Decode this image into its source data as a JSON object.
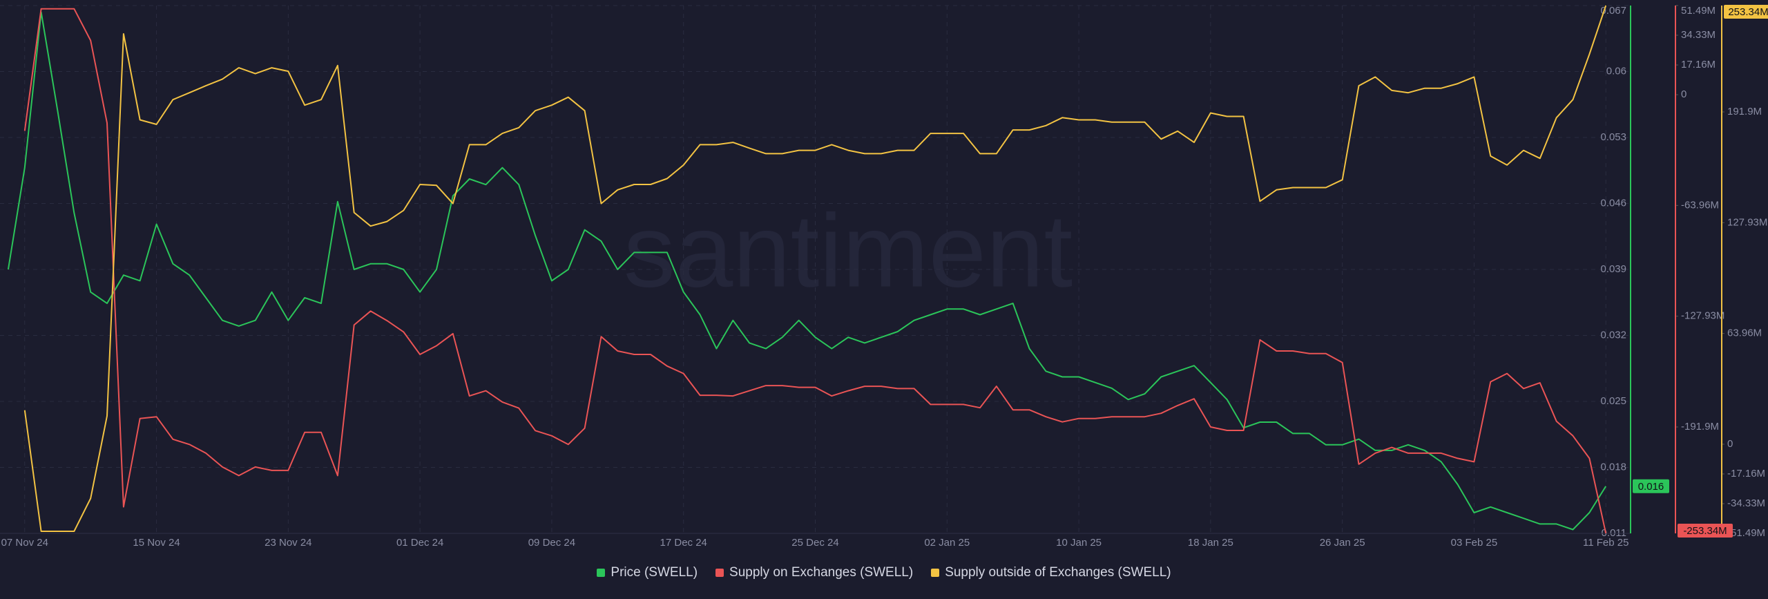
{
  "chart_data": {
    "type": "line",
    "watermark": "santiment",
    "xlim": [
      "2024-11-05T12:00:00Z",
      "2025-02-12T12:00:00Z"
    ],
    "xticks": [
      {
        "value": "2024-11-07",
        "label": "07 Nov 24"
      },
      {
        "value": "2024-11-15",
        "label": "15 Nov 24"
      },
      {
        "value": "2024-11-23",
        "label": "23 Nov 24"
      },
      {
        "value": "2024-12-01",
        "label": "01 Dec 24"
      },
      {
        "value": "2024-12-09",
        "label": "09 Dec 24"
      },
      {
        "value": "2024-12-17",
        "label": "17 Dec 24"
      },
      {
        "value": "2024-12-25",
        "label": "25 Dec 24"
      },
      {
        "value": "2025-01-02",
        "label": "02 Jan 25"
      },
      {
        "value": "2025-01-10",
        "label": "10 Jan 25"
      },
      {
        "value": "2025-01-18",
        "label": "18 Jan 25"
      },
      {
        "value": "2025-01-26",
        "label": "26 Jan 25"
      },
      {
        "value": "2025-02-03",
        "label": "03 Feb 25"
      },
      {
        "value": "2025-02-11",
        "label": "11 Feb 25"
      }
    ],
    "ylim": [
      0.011,
      0.067
    ],
    "yticks": [
      0.011,
      0.018,
      0.025,
      0.032,
      0.039,
      0.046,
      0.053,
      0.06,
      0.067
    ],
    "y2lim": [
      -253340000.0,
      51490000.0
    ],
    "y2ticks": [
      {
        "value": 51490000.0,
        "label": "51.49M"
      },
      {
        "value": 34330000.0,
        "label": "34.33M"
      },
      {
        "value": 17160000.0,
        "label": "17.16M"
      },
      {
        "value": 0,
        "label": "0"
      },
      {
        "value": -63960000.0,
        "label": "-63.96M"
      },
      {
        "value": -127930000.0,
        "label": "-127.93M"
      },
      {
        "value": -191900000.0,
        "label": "-191.9M"
      }
    ],
    "y3lim": [
      -51490000.0,
      253340000.0
    ],
    "y3ticks": [
      {
        "value": 191900000.0,
        "label": "191.9M"
      },
      {
        "value": 127930000.0,
        "label": "127.93M"
      },
      {
        "value": 63960000.0,
        "label": "63.96M"
      },
      {
        "value": 0,
        "label": "0"
      },
      {
        "value": -17160000.0,
        "label": "-17.16M"
      },
      {
        "value": -34330000.0,
        "label": "-34.33M"
      },
      {
        "value": -51490000.0,
        "label": "-51.49M"
      }
    ],
    "grid": true,
    "x": [
      "2024-11-06",
      "2024-11-07",
      "2024-11-08",
      "2024-11-09",
      "2024-11-10",
      "2024-11-11",
      "2024-11-12",
      "2024-11-13",
      "2024-11-14",
      "2024-11-15",
      "2024-11-16",
      "2024-11-17",
      "2024-11-18",
      "2024-11-19",
      "2024-11-20",
      "2024-11-21",
      "2024-11-22",
      "2024-11-23",
      "2024-11-24",
      "2024-11-25",
      "2024-11-26",
      "2024-11-27",
      "2024-11-28",
      "2024-11-29",
      "2024-11-30",
      "2024-12-01",
      "2024-12-02",
      "2024-12-03",
      "2024-12-04",
      "2024-12-05",
      "2024-12-06",
      "2024-12-07",
      "2024-12-08",
      "2024-12-09",
      "2024-12-10",
      "2024-12-11",
      "2024-12-12",
      "2024-12-13",
      "2024-12-14",
      "2024-12-15",
      "2024-12-16",
      "2024-12-17",
      "2024-12-18",
      "2024-12-19",
      "2024-12-20",
      "2024-12-21",
      "2024-12-22",
      "2024-12-23",
      "2024-12-24",
      "2024-12-25",
      "2024-12-26",
      "2024-12-27",
      "2024-12-28",
      "2024-12-29",
      "2024-12-30",
      "2024-12-31",
      "2025-01-01",
      "2025-01-02",
      "2025-01-03",
      "2025-01-04",
      "2025-01-05",
      "2025-01-06",
      "2025-01-07",
      "2025-01-08",
      "2025-01-09",
      "2025-01-10",
      "2025-01-11",
      "2025-01-12",
      "2025-01-13",
      "2025-01-14",
      "2025-01-15",
      "2025-01-16",
      "2025-01-17",
      "2025-01-18",
      "2025-01-19",
      "2025-01-20",
      "2025-01-21",
      "2025-01-22",
      "2025-01-23",
      "2025-01-24",
      "2025-01-25",
      "2025-01-26",
      "2025-01-27",
      "2025-01-28",
      "2025-01-29",
      "2025-01-30",
      "2025-01-31",
      "2025-02-01",
      "2025-02-02",
      "2025-02-03",
      "2025-02-04",
      "2025-02-05",
      "2025-02-06",
      "2025-02-07",
      "2025-02-08",
      "2025-02-09",
      "2025-02-10",
      "2025-02-11"
    ],
    "series": [
      {
        "name": "Price (SWELL)",
        "color": "#2bc55a",
        "axis": "y",
        "last_label": "0.016",
        "values": [
          0.039,
          0.0498,
          0.0663,
          0.0558,
          0.045,
          0.0366,
          0.0354,
          0.0384,
          0.0378,
          0.0438,
          0.0396,
          0.0384,
          0.036,
          0.0336,
          0.033,
          0.0336,
          0.0366,
          0.0336,
          0.036,
          0.0354,
          0.0462,
          0.039,
          0.0396,
          0.0396,
          0.039,
          0.0366,
          0.039,
          0.0468,
          0.0486,
          0.048,
          0.0498,
          0.048,
          0.0426,
          0.0378,
          0.039,
          0.0432,
          0.042,
          0.039,
          0.0408,
          0.0408,
          0.0408,
          0.0366,
          0.0342,
          0.0306,
          0.0336,
          0.0312,
          0.0306,
          0.0318,
          0.0336,
          0.0318,
          0.0306,
          0.0318,
          0.0312,
          0.0318,
          0.0324,
          0.0336,
          0.0342,
          0.0348,
          0.0348,
          0.0342,
          0.0348,
          0.0354,
          0.0306,
          0.0282,
          0.0276,
          0.0276,
          0.027,
          0.0264,
          0.0252,
          0.0258,
          0.0276,
          0.0282,
          0.0288,
          0.027,
          0.0252,
          0.0222,
          0.0228,
          0.0228,
          0.0216,
          0.0216,
          0.0204,
          0.0204,
          0.021,
          0.0198,
          0.0198,
          0.0204,
          0.0198,
          0.0186,
          0.0162,
          0.0132,
          0.0138,
          0.0132,
          0.0126,
          0.012,
          0.012,
          0.0114,
          0.0132,
          0.016
        ]
      },
      {
        "name": "Supply on Exchanges (SWELL)",
        "color": "#ea5455",
        "axis": "y2",
        "last_label": "-253.34M",
        "values": [
          null,
          -20900000.0,
          49600000.0,
          49600000.0,
          49600000.0,
          31300000.0,
          -16300000.0,
          -238000000.0,
          -187000000.0,
          -186000000.0,
          -199000000.0,
          -202000000.0,
          -207000000.0,
          -215000000.0,
          -220000000.0,
          -215000000.0,
          -217000000.0,
          -217000000.0,
          -195000000.0,
          -195000000.0,
          -220000000.0,
          -133000000.0,
          -125000000.0,
          -130500000.0,
          -137000000.0,
          -150000000.0,
          -145000000.0,
          -138000000.0,
          -174000000.0,
          -171000000.0,
          -177500000.0,
          -181000000.0,
          -194000000.0,
          -197000000.0,
          -202000000.0,
          -192600000.0,
          -139700000.0,
          -148000000.0,
          -150000000.0,
          -150000000.0,
          -156700000.0,
          -161000000.0,
          -173600000.0,
          -173600000.0,
          -174000000.0,
          -171000000.0,
          -168000000.0,
          -168000000.0,
          -169000000.0,
          -169000000.0,
          -174000000.0,
          -171000000.0,
          -168400000.0,
          -168400000.0,
          -169700000.0,
          -169700000.0,
          -178900000.0,
          -178900000.0,
          -178900000.0,
          -180800000.0,
          -168400000.0,
          -182000000.0,
          -182000000.0,
          -186000000.0,
          -189000000.0,
          -187000000.0,
          -187000000.0,
          -186000000.0,
          -186000000.0,
          -186000000.0,
          -184000000.0,
          -179500000.0,
          -175600000.0,
          -191900000.0,
          -193900000.0,
          -193900000.0,
          -141600000.0,
          -148000000.0,
          -148000000.0,
          -149500000.0,
          -149500000.0,
          -154700000.0,
          -213400000.0,
          -207000000.0,
          -203700000.0,
          -207000000.0,
          -207000000.0,
          -207000000.0,
          -210000000.0,
          -212000000.0,
          -165800000.0,
          -161000000.0,
          -169700000.0,
          -166400000.0,
          -188600000.0,
          -197000000.0,
          -210000000.0,
          -253340000.0
        ]
      },
      {
        "name": "Supply outside of Exchanges (SWELL)",
        "color": "#f3c343",
        "axis": "y3",
        "last_label": "253.34M",
        "values": [
          null,
          19600000.0,
          -50300000.0,
          -50300000.0,
          -50300000.0,
          -31300000.0,
          16300000.0,
          237000000.0,
          187300000.0,
          184700000.0,
          199000000.0,
          203000000.0,
          207000000.0,
          210800000.0,
          217400000.0,
          214000000.0,
          217400000.0,
          215400000.0,
          195800000.0,
          199000000.0,
          218700000.0,
          133800000.0,
          126000000.0,
          128600000.0,
          135000000.0,
          150000000.0,
          149500000.0,
          139000000.0,
          173000000.0,
          173000000.0,
          179500000.0,
          182800000.0,
          192600000.0,
          195800000.0,
          200400000.0,
          192600000.0,
          139000000.0,
          146900000.0,
          150000000.0,
          150000000.0,
          153400000.0,
          161200000.0,
          173000000.0,
          173000000.0,
          174300000.0,
          171000000.0,
          167800000.0,
          167800000.0,
          169700000.0,
          169700000.0,
          173000000.0,
          169700000.0,
          167800000.0,
          167800000.0,
          169700000.0,
          169700000.0,
          179500000.0,
          179500000.0,
          179500000.0,
          167800000.0,
          167800000.0,
          181500000.0,
          181500000.0,
          184000000.0,
          188600000.0,
          187300000.0,
          187300000.0,
          186000000.0,
          186000000.0,
          186000000.0,
          176200000.0,
          180800000.0,
          174300000.0,
          191300000.0,
          189300000.0,
          189300000.0,
          140300000.0,
          146900000.0,
          148200000.0,
          148200000.0,
          148200000.0,
          152700000.0,
          207000000.0,
          212100000.0,
          204300000.0,
          203000000.0,
          205600000.0,
          205600000.0,
          208200000.0,
          212100000.0,
          166400000.0,
          161200000.0,
          169700000.0,
          165100000.0,
          188600000.0,
          199000000.0,
          225200000.0,
          253340000.0
        ]
      }
    ]
  }
}
